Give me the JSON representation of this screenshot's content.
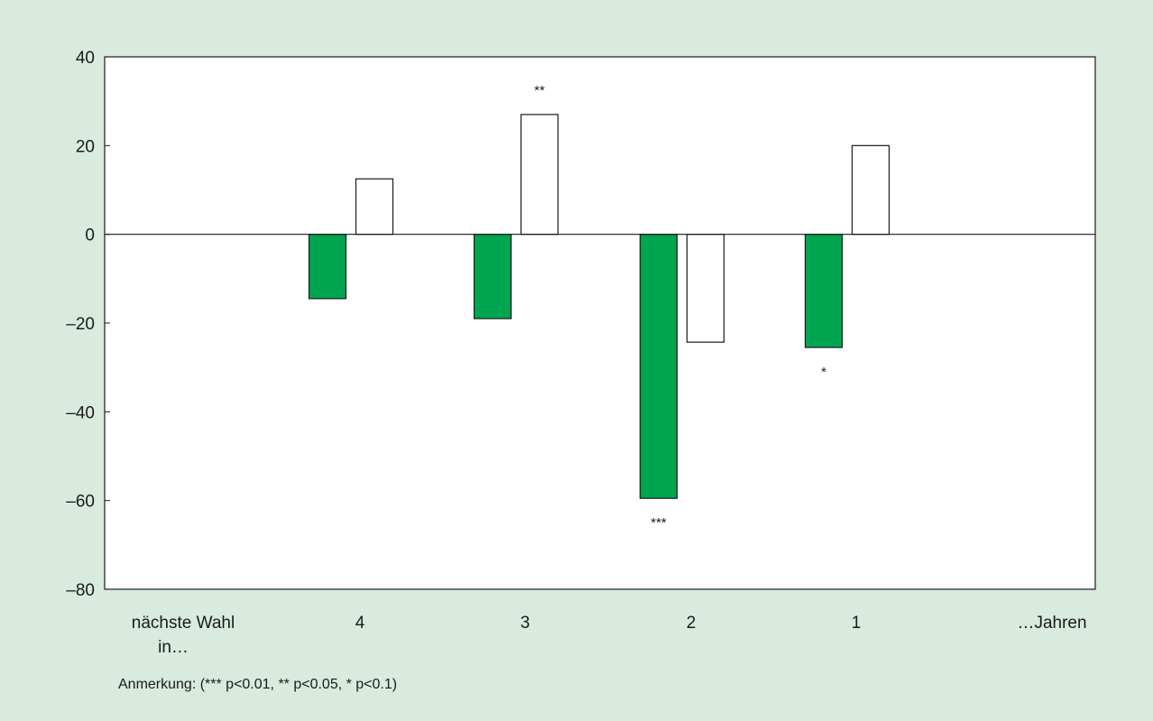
{
  "chart_data": {
    "type": "bar",
    "categories": [
      "4",
      "3",
      "2",
      "1"
    ],
    "x_first_label_lines": [
      "nächste Wahl",
      "in…"
    ],
    "x_last_label": "…Jahren",
    "ylim": [
      -80,
      40
    ],
    "yticks": [
      40,
      20,
      0,
      -20,
      -40,
      -60,
      -80
    ],
    "ytick_labels": [
      "40",
      "20",
      "0",
      "–20",
      "–40",
      "–60",
      "–80"
    ],
    "series": [
      {
        "values": [
          -14.5,
          -19,
          -59.5,
          -25.5
        ],
        "fill": "#00a550"
      },
      {
        "values": [
          12.5,
          27,
          -24.3,
          20
        ],
        "fill": "#ffffff"
      }
    ],
    "significance": [
      {
        "category": "3",
        "series": 1,
        "label": "**"
      },
      {
        "category": "2",
        "series": 0,
        "label": "***"
      },
      {
        "category": "1",
        "series": 0,
        "label": "*"
      }
    ],
    "grid": false,
    "note": "Anmerkung: (*** p<0.01, ** p<0.05, * p<0.1)"
  }
}
